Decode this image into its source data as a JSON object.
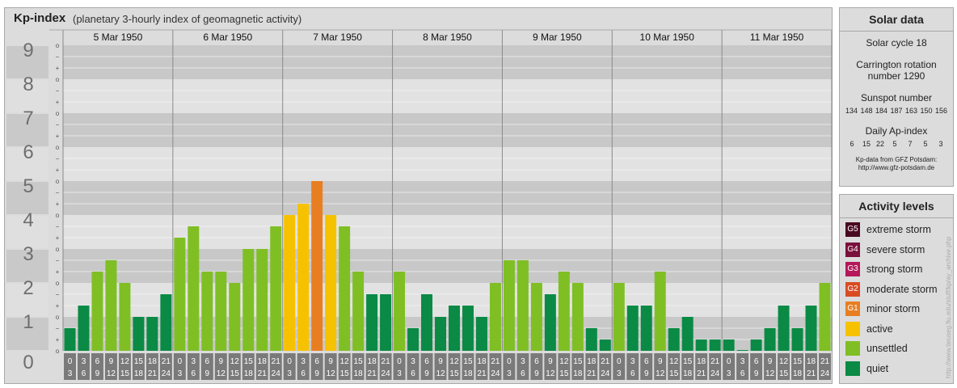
{
  "header": {
    "title": "Kp-index",
    "subtitle": "(planetary 3-hourly index of geomagnetic activity)"
  },
  "chart_data": {
    "type": "bar",
    "title": "Kp-index",
    "subtitle": "(planetary 3-hourly index of geomagnetic activity)",
    "ylim": [
      0,
      9
    ],
    "y_tick_labels": [
      "0",
      "1",
      "2",
      "3",
      "4",
      "5",
      "6",
      "7",
      "8",
      "9"
    ],
    "y_minor_labels": [
      "o",
      "+",
      "−"
    ],
    "days": [
      "5 Mar 1950",
      "6 Mar 1950",
      "7 Mar 1950",
      "8 Mar 1950",
      "9 Mar 1950",
      "10 Mar 1950",
      "11 Mar 1950"
    ],
    "interval_labels": [
      [
        "0",
        "3"
      ],
      [
        "3",
        "6"
      ],
      [
        "6",
        "9"
      ],
      [
        "9",
        "12"
      ],
      [
        "12",
        "15"
      ],
      [
        "15",
        "18"
      ],
      [
        "18",
        "21"
      ],
      [
        "21",
        "24"
      ]
    ],
    "values": [
      0.667,
      1.333,
      2.333,
      2.667,
      2.0,
      1.0,
      1.0,
      1.667,
      3.333,
      3.667,
      2.333,
      2.333,
      2.0,
      3.0,
      3.0,
      3.667,
      4.0,
      4.333,
      5.0,
      4.0,
      3.667,
      2.333,
      1.667,
      1.667,
      2.333,
      0.667,
      1.667,
      1.0,
      1.333,
      1.333,
      1.0,
      2.0,
      2.667,
      2.667,
      2.0,
      1.667,
      2.333,
      2.0,
      0.667,
      0.333,
      2.0,
      1.333,
      1.333,
      2.333,
      0.667,
      1.0,
      0.333,
      0.333,
      0.333,
      0.0,
      0.333,
      0.667,
      1.333,
      0.667,
      1.333,
      2.0
    ],
    "colors": {
      "quiet": "#0a8a45",
      "unsettled": "#7fbf24",
      "active": "#f6c200",
      "minor": "#e87e22",
      "moderate": "#d94c22",
      "strong": "#b4185a",
      "severe": "#7a103c",
      "extreme": "#4a0820"
    },
    "grid": true
  },
  "solar": {
    "heading": "Solar data",
    "cycle": "Solar cycle 18",
    "carrington_line1": "Carrington rotation",
    "carrington_line2": "number 1290",
    "sunspot_label": "Sunspot number",
    "sunspot_values": "134 148 184 187 163 150 156",
    "ap_label": "Daily Ap-index",
    "ap_values": "6   15  22   5    7    5    3",
    "source_line1": "Kp-data from GFZ Potsdam:",
    "source_line2": "http://www.gfz-potsdam.de"
  },
  "activity": {
    "heading": "Activity levels",
    "items": [
      {
        "code": "G5",
        "label": "extreme storm",
        "color": "#4a0820"
      },
      {
        "code": "G4",
        "label": "severe storm",
        "color": "#7a103c"
      },
      {
        "code": "G3",
        "label": "strong storm",
        "color": "#b4185a"
      },
      {
        "code": "G2",
        "label": "moderate storm",
        "color": "#d94c22"
      },
      {
        "code": "G1",
        "label": "minor storm",
        "color": "#e87e22"
      },
      {
        "code": "",
        "label": "active",
        "color": "#f6c200"
      },
      {
        "code": "",
        "label": "unsettled",
        "color": "#7fbf24"
      },
      {
        "code": "",
        "label": "quiet",
        "color": "#0a8a45"
      }
    ]
  },
  "watermark": "http://www.tieuseg.fiu.edu/stuff/kp/ay_archive.php"
}
